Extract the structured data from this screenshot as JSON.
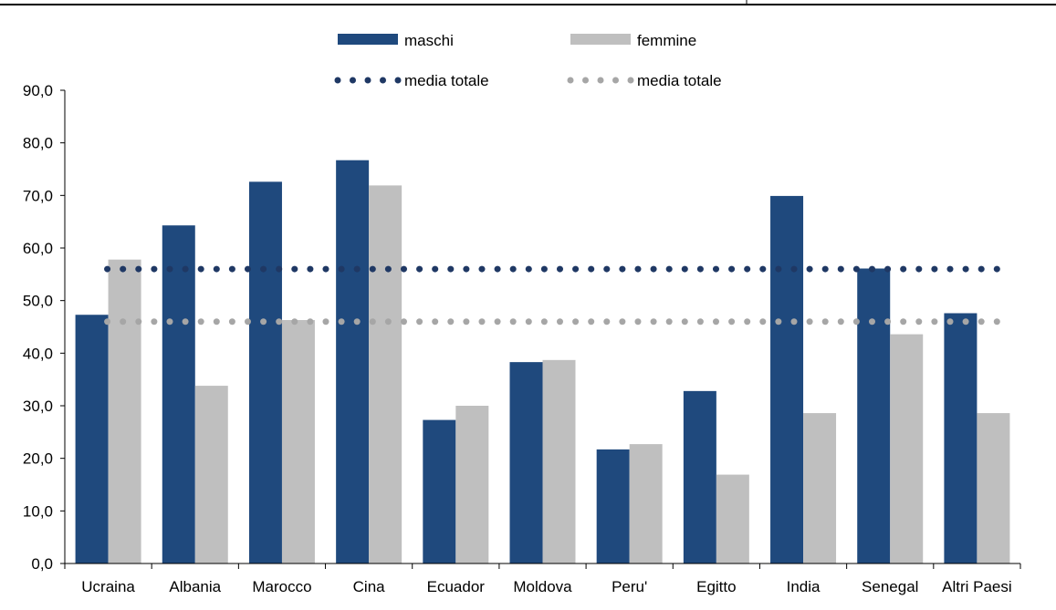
{
  "chart_data": {
    "type": "bar",
    "categories": [
      "Ucraina",
      "Albania",
      "Marocco",
      "Cina",
      "Ecuador",
      "Moldova",
      "Peru'",
      "Egitto",
      "India",
      "Senegal",
      "Altri Paesi"
    ],
    "series": [
      {
        "name": "maschi",
        "color": "#1f497d",
        "values": [
          47.3,
          64.3,
          72.6,
          76.7,
          27.3,
          38.3,
          21.7,
          32.8,
          69.9,
          56.1,
          47.6
        ]
      },
      {
        "name": "femmine",
        "color": "#bfbfbf",
        "values": [
          57.8,
          33.8,
          46.3,
          71.9,
          30.0,
          38.7,
          22.7,
          16.9,
          28.6,
          43.6,
          28.6
        ]
      }
    ],
    "reference_lines": [
      {
        "name": "media totale",
        "color": "#1f3864",
        "value": 56.0,
        "style": "dotted"
      },
      {
        "name": "media totale",
        "color": "#a6a6a6",
        "value": 46.0,
        "style": "dotted"
      }
    ],
    "ylim": [
      0,
      90
    ],
    "yticks": [
      "0,0",
      "10,0",
      "20,0",
      "30,0",
      "40,0",
      "50,0",
      "60,0",
      "70,0",
      "80,0",
      "90,0"
    ],
    "title": "",
    "xlabel": "",
    "ylabel": "",
    "legend_position": "top-center",
    "grid": false
  }
}
